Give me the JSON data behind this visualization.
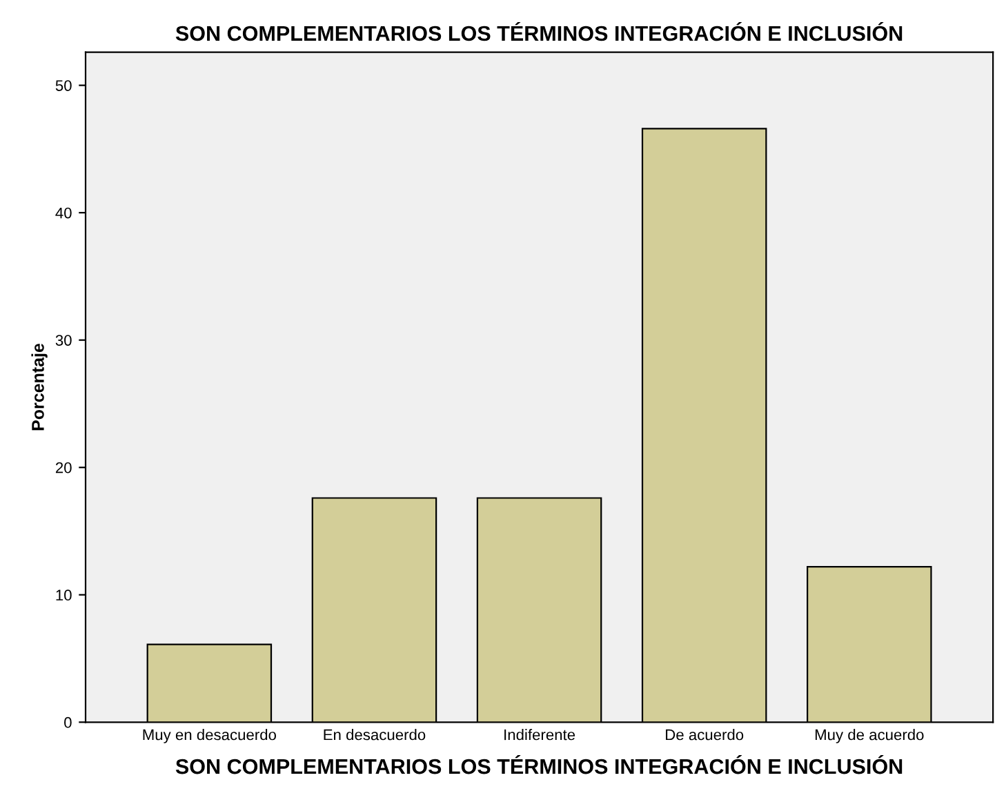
{
  "chart_data": {
    "type": "bar",
    "title": "SON COMPLEMENTARIOS LOS TÉRMINOS INTEGRACIÓN E INCLUSIÓN",
    "xlabel": "SON COMPLEMENTARIOS LOS TÉRMINOS INTEGRACIÓN E INCLUSIÓN",
    "ylabel": "Porcentaje",
    "categories": [
      "Muy en desacuerdo",
      "En desacuerdo",
      "Indiferente",
      "De acuerdo",
      "Muy de acuerdo"
    ],
    "values": [
      6.1,
      17.6,
      17.6,
      46.6,
      12.2
    ],
    "color": "#d3ce98",
    "ylim": [
      0,
      52.6
    ],
    "yticks": [
      0,
      10,
      20,
      30,
      40,
      50
    ],
    "grid": false,
    "legend": false
  }
}
